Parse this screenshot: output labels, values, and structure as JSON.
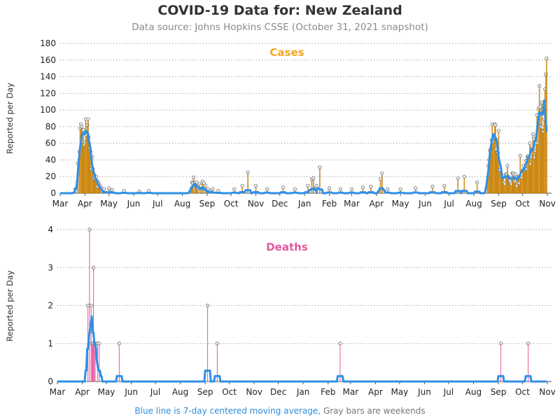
{
  "title": "COVID-19 Data for: New Zealand",
  "subtitle": "Data source: Johns Hopkins CSSE (October 31, 2021 snapshot)",
  "footer": {
    "moving_avg_note": "Blue line is 7-day centered moving average,",
    "weekend_note": "Gray bars are weekends"
  },
  "colors": {
    "cases": "#f5a623",
    "deaths": "#e5579f",
    "moving_average": "#2f8fe6",
    "weekend": "#888888"
  },
  "chart_data": [
    {
      "type": "bar",
      "panel_label": "Cases",
      "ylabel": "Reported per Day",
      "ylim": [
        0,
        180
      ],
      "yticks": [
        0,
        20,
        40,
        60,
        80,
        100,
        120,
        140,
        160,
        180
      ],
      "x_tick_labels": [
        "Mar",
        "Apr",
        "May",
        "Jun",
        "Jul",
        "Aug",
        "Sep",
        "Oct",
        "Nov",
        "Dec",
        "Jan",
        "Feb",
        "Mar",
        "Apr",
        "May",
        "Jun",
        "Jul",
        "Aug",
        "Sep",
        "Oct",
        "Nov"
      ],
      "x_range": [
        "2020-03-01",
        "2021-11-01"
      ],
      "grid": "horizontal dotted",
      "series": [
        {
          "values_by_date": [
            [
              "2020-03-20",
              5
            ],
            [
              "2020-03-23",
              36
            ],
            [
              "2020-03-25",
              50
            ],
            [
              "2020-03-26",
              78
            ],
            [
              "2020-03-27",
              83
            ],
            [
              "2020-03-28",
              80
            ],
            [
              "2020-03-29",
              62
            ],
            [
              "2020-03-30",
              76
            ],
            [
              "2020-03-31",
              58
            ],
            [
              "2020-04-01",
              61
            ],
            [
              "2020-04-02",
              89
            ],
            [
              "2020-04-03",
              70
            ],
            [
              "2020-04-04",
              82
            ],
            [
              "2020-04-05",
              89
            ],
            [
              "2020-04-06",
              67
            ],
            [
              "2020-04-07",
              54
            ],
            [
              "2020-04-08",
              50
            ],
            [
              "2020-04-09",
              29
            ],
            [
              "2020-04-10",
              44
            ],
            [
              "2020-04-11",
              29
            ],
            [
              "2020-04-12",
              18
            ],
            [
              "2020-04-13",
              19
            ],
            [
              "2020-04-14",
              17
            ],
            [
              "2020-04-15",
              20
            ],
            [
              "2020-04-16",
              15
            ],
            [
              "2020-04-17",
              8
            ],
            [
              "2020-04-18",
              13
            ],
            [
              "2020-04-19",
              9
            ],
            [
              "2020-04-20",
              9
            ],
            [
              "2020-04-22",
              6
            ],
            [
              "2020-04-25",
              5
            ],
            [
              "2020-05-01",
              6
            ],
            [
              "2020-05-05",
              4
            ],
            [
              "2020-05-20",
              3
            ],
            [
              "2020-06-08",
              2
            ],
            [
              "2020-06-20",
              3
            ],
            [
              "2020-08-12",
              4
            ],
            [
              "2020-08-13",
              13
            ],
            [
              "2020-08-14",
              12
            ],
            [
              "2020-08-15",
              19
            ],
            [
              "2020-08-17",
              13
            ],
            [
              "2020-08-18",
              9
            ],
            [
              "2020-08-19",
              13
            ],
            [
              "2020-08-20",
              6
            ],
            [
              "2020-08-22",
              11
            ],
            [
              "2020-08-24",
              9
            ],
            [
              "2020-08-26",
              14
            ],
            [
              "2020-08-28",
              12
            ],
            [
              "2020-08-30",
              9
            ],
            [
              "2020-09-02",
              5
            ],
            [
              "2020-09-05",
              3
            ],
            [
              "2020-09-08",
              5
            ],
            [
              "2020-09-15",
              3
            ],
            [
              "2020-10-05",
              5
            ],
            [
              "2020-10-15",
              9
            ],
            [
              "2020-10-22",
              25
            ],
            [
              "2020-11-01",
              9
            ],
            [
              "2020-11-15",
              5
            ],
            [
              "2020-12-05",
              7
            ],
            [
              "2020-12-20",
              5
            ],
            [
              "2021-01-05",
              9
            ],
            [
              "2021-01-10",
              17
            ],
            [
              "2021-01-12",
              18
            ],
            [
              "2021-01-16",
              9
            ],
            [
              "2021-01-20",
              31
            ],
            [
              "2021-02-01",
              6
            ],
            [
              "2021-02-15",
              5
            ],
            [
              "2021-03-01",
              5
            ],
            [
              "2021-03-15",
              7
            ],
            [
              "2021-03-25",
              8
            ],
            [
              "2021-04-06",
              17
            ],
            [
              "2021-04-08",
              24
            ],
            [
              "2021-04-15",
              5
            ],
            [
              "2021-05-01",
              5
            ],
            [
              "2021-05-20",
              6
            ],
            [
              "2021-06-10",
              8
            ],
            [
              "2021-06-25",
              9
            ],
            [
              "2021-07-12",
              18
            ],
            [
              "2021-07-20",
              20
            ],
            [
              "2021-08-05",
              13
            ],
            [
              "2021-08-18",
              11
            ],
            [
              "2021-08-19",
              33
            ],
            [
              "2021-08-20",
              40
            ],
            [
              "2021-08-21",
              51
            ],
            [
              "2021-08-22",
              53
            ],
            [
              "2021-08-23",
              64
            ],
            [
              "2021-08-24",
              83
            ],
            [
              "2021-08-25",
              62
            ],
            [
              "2021-08-26",
              70
            ],
            [
              "2021-08-27",
              83
            ],
            [
              "2021-08-28",
              82
            ],
            [
              "2021-08-29",
              53
            ],
            [
              "2021-08-30",
              49
            ],
            [
              "2021-08-31",
              49
            ],
            [
              "2021-09-01",
              75
            ],
            [
              "2021-09-02",
              28
            ],
            [
              "2021-09-03",
              28
            ],
            [
              "2021-09-04",
              20
            ],
            [
              "2021-09-05",
              20
            ],
            [
              "2021-09-06",
              20
            ],
            [
              "2021-09-07",
              21
            ],
            [
              "2021-09-08",
              13
            ],
            [
              "2021-09-09",
              11
            ],
            [
              "2021-09-10",
              23
            ],
            [
              "2021-09-11",
              22
            ],
            [
              "2021-09-12",
              33
            ],
            [
              "2021-09-13",
              20
            ],
            [
              "2021-09-14",
              15
            ],
            [
              "2021-09-15",
              15
            ],
            [
              "2021-09-16",
              13
            ],
            [
              "2021-09-17",
              11
            ],
            [
              "2021-09-18",
              24
            ],
            [
              "2021-09-19",
              24
            ],
            [
              "2021-09-20",
              22
            ],
            [
              "2021-09-21",
              14
            ],
            [
              "2021-09-22",
              23
            ],
            [
              "2021-09-23",
              15
            ],
            [
              "2021-09-24",
              9
            ],
            [
              "2021-09-25",
              17
            ],
            [
              "2021-09-26",
              20
            ],
            [
              "2021-09-27",
              12
            ],
            [
              "2021-09-28",
              45
            ],
            [
              "2021-09-29",
              19
            ],
            [
              "2021-09-30",
              19
            ],
            [
              "2021-10-01",
              27
            ],
            [
              "2021-10-02",
              33
            ],
            [
              "2021-10-03",
              29
            ],
            [
              "2021-10-04",
              29
            ],
            [
              "2021-10-05",
              39
            ],
            [
              "2021-10-06",
              29
            ],
            [
              "2021-10-07",
              44
            ],
            [
              "2021-10-08",
              44
            ],
            [
              "2021-10-09",
              44
            ],
            [
              "2021-10-10",
              60
            ],
            [
              "2021-10-11",
              35
            ],
            [
              "2021-10-12",
              43
            ],
            [
              "2021-10-13",
              55
            ],
            [
              "2021-10-14",
              71
            ],
            [
              "2021-10-15",
              65
            ],
            [
              "2021-10-16",
              43
            ],
            [
              "2021-10-17",
              51
            ],
            [
              "2021-10-18",
              60
            ],
            [
              "2021-10-19",
              94
            ],
            [
              "2021-10-20",
              60
            ],
            [
              "2021-10-21",
              102
            ],
            [
              "2021-10-22",
              129
            ],
            [
              "2021-10-23",
              104
            ],
            [
              "2021-10-24",
              80
            ],
            [
              "2021-10-25",
              109
            ],
            [
              "2021-10-26",
              79
            ],
            [
              "2021-10-27",
              74
            ],
            [
              "2021-10-28",
              89
            ],
            [
              "2021-10-29",
              125
            ],
            [
              "2021-10-30",
              143
            ],
            [
              "2021-10-31",
              162
            ]
          ]
        }
      ]
    },
    {
      "type": "bar",
      "panel_label": "Deaths",
      "ylabel": "Reported per Day",
      "ylim": [
        0,
        4
      ],
      "yticks": [
        0,
        1,
        2,
        3,
        4
      ],
      "x_tick_labels": [
        "Mar",
        "Apr",
        "May",
        "Jun",
        "Jul",
        "Aug",
        "Sep",
        "Oct",
        "Nov",
        "Dec",
        "Jan",
        "Feb",
        "Mar",
        "Apr",
        "May",
        "Jun",
        "Jul",
        "Aug",
        "Sep",
        "Oct",
        "Nov"
      ],
      "x_range": [
        "2020-03-01",
        "2021-11-01"
      ],
      "grid": "horizontal dotted",
      "series": [
        {
          "values_by_date": [
            [
              "2020-04-08",
              2
            ],
            [
              "2020-04-10",
              4
            ],
            [
              "2020-04-12",
              2
            ],
            [
              "2020-04-13",
              1
            ],
            [
              "2020-04-14",
              1
            ],
            [
              "2020-04-15",
              3
            ],
            [
              "2020-04-16",
              1
            ],
            [
              "2020-04-17",
              1
            ],
            [
              "2020-04-20",
              1
            ],
            [
              "2020-04-22",
              1
            ],
            [
              "2020-05-17",
              1
            ],
            [
              "2020-09-04",
              2
            ],
            [
              "2020-09-16",
              1
            ],
            [
              "2021-02-16",
              1
            ],
            [
              "2021-09-04",
              1
            ],
            [
              "2021-10-08",
              1
            ]
          ]
        }
      ]
    }
  ]
}
